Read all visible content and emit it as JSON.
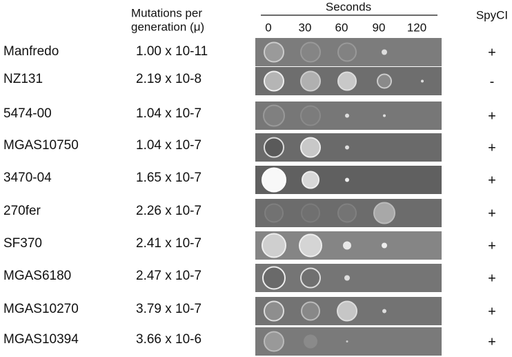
{
  "header": {
    "mutations_line1": "Mutations per",
    "mutations_line2": "generation (μ)",
    "seconds": "Seconds",
    "times": [
      "0",
      "30",
      "60",
      "90",
      "120"
    ],
    "spyci": "SpyCI"
  },
  "rows": [
    {
      "strain": "Manfredo",
      "rate": "1.00 x 10-11",
      "spyci": "+"
    },
    {
      "strain": "NZ131",
      "rate": "2.19 x 10-8",
      "spyci": "-"
    },
    {
      "strain": "5474-00",
      "rate": "1.04 x 10-7",
      "spyci": "+"
    },
    {
      "strain": "MGAS10750",
      "rate": "1.04 x 10-7",
      "spyci": "+"
    },
    {
      "strain": "3470-04",
      "rate": "1.65 x 10-7",
      "spyci": "+"
    },
    {
      "strain": "270fer",
      "rate": "2.26 x 10-7",
      "spyci": "+"
    },
    {
      "strain": "SF370",
      "rate": "2.41 x 10-7",
      "spyci": "+"
    },
    {
      "strain": "MGAS6180",
      "rate": "2.47 x 10-7",
      "spyci": "+"
    },
    {
      "strain": "MGAS10270",
      "rate": "3.79 x 10-7",
      "spyci": "+"
    },
    {
      "strain": "MGAS10394",
      "rate": "3.66 x 10-6",
      "spyci": "+"
    }
  ]
}
